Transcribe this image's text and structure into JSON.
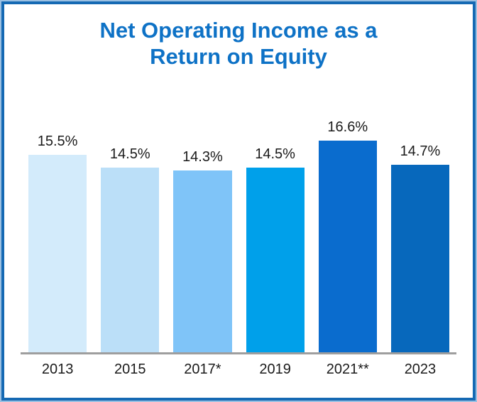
{
  "frame": {
    "outer_border_color": "#9BC0E2",
    "inner_border_color": "#1569B3"
  },
  "title": {
    "line1": "Net Operating Income as a",
    "line2": "Return on Equity",
    "color": "#0E72C6"
  },
  "chart_data": {
    "type": "bar",
    "title": "Net Operating Income as a Return on Equity",
    "categories": [
      "2013",
      "2015",
      "2017*",
      "2019",
      "2021**",
      "2023"
    ],
    "values": [
      15.5,
      14.5,
      14.3,
      14.5,
      16.6,
      14.7
    ],
    "value_labels": [
      "15.5%",
      "14.5%",
      "14.3%",
      "14.5%",
      "16.6%",
      "14.7%"
    ],
    "bar_colors": [
      "#D3EBFB",
      "#BBDFF8",
      "#7FC4F8",
      "#00A0EA",
      "#0A6CCE",
      "#0768BC"
    ],
    "xlabel": "",
    "ylabel": "",
    "ylim": [
      0,
      18
    ],
    "unit": "%",
    "grid": false,
    "legend": false,
    "axis_line_color": "#9E9E9E",
    "value_label_color": "#1A1A1A",
    "category_label_color": "#1A1A1A"
  }
}
